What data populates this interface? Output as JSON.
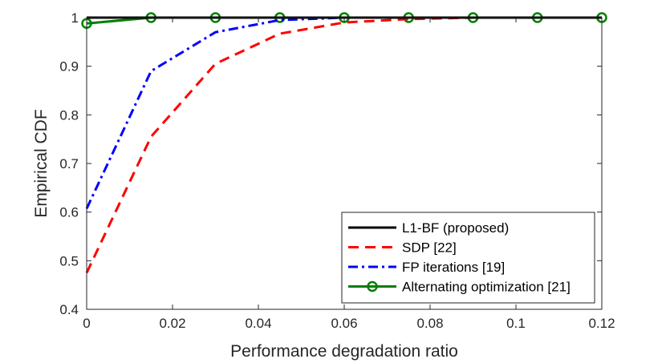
{
  "chart_data": {
    "type": "line",
    "title": "",
    "xlabel": "Performance degradation ratio",
    "ylabel": "Empirical CDF",
    "xlim": [
      0,
      0.12
    ],
    "ylim": [
      0.4,
      1.0
    ],
    "xticks": [
      0,
      0.02,
      0.04,
      0.06,
      0.08,
      0.1,
      0.12
    ],
    "xtick_labels": [
      "0",
      "0.02",
      "0.04",
      "0.06",
      "0.08",
      "0.1",
      "0.12"
    ],
    "yticks": [
      0.4,
      0.5,
      0.6,
      0.7,
      0.8,
      0.9,
      1.0
    ],
    "ytick_labels": [
      "0.4",
      "0.5",
      "0.6",
      "0.7",
      "0.8",
      "0.9",
      "1"
    ],
    "legend_position": "bottom-right",
    "series": [
      {
        "name": "L1-BF (proposed)",
        "color": "#000000",
        "style": "solid",
        "marker": "none",
        "x": [
          0,
          0.015,
          0.03,
          0.045,
          0.06,
          0.075,
          0.09,
          0.105,
          0.12
        ],
        "y": [
          1,
          1,
          1,
          1,
          1,
          1,
          1,
          1,
          1
        ]
      },
      {
        "name": "SDP [22]",
        "color": "#ff0000",
        "style": "dashed",
        "marker": "none",
        "x": [
          0,
          0.015,
          0.03,
          0.045,
          0.06,
          0.075,
          0.09,
          0.105,
          0.12
        ],
        "y": [
          0.475,
          0.755,
          0.905,
          0.967,
          0.99,
          0.997,
          1,
          1,
          1
        ]
      },
      {
        "name": "FP iterations [19]",
        "color": "#0000ff",
        "style": "dashdot",
        "marker": "none",
        "x": [
          0,
          0.015,
          0.03,
          0.045,
          0.06,
          0.075,
          0.09,
          0.105,
          0.12
        ],
        "y": [
          0.607,
          0.89,
          0.97,
          0.995,
          1,
          1,
          1,
          1,
          1
        ]
      },
      {
        "name": "Alternating optimization [21]",
        "color": "#008000",
        "style": "solid",
        "marker": "circle",
        "x": [
          0,
          0.015,
          0.03,
          0.045,
          0.06,
          0.075,
          0.09,
          0.105,
          0.12
        ],
        "y": [
          0.988,
          1,
          1,
          1,
          1,
          1,
          1,
          1,
          1
        ]
      }
    ]
  }
}
